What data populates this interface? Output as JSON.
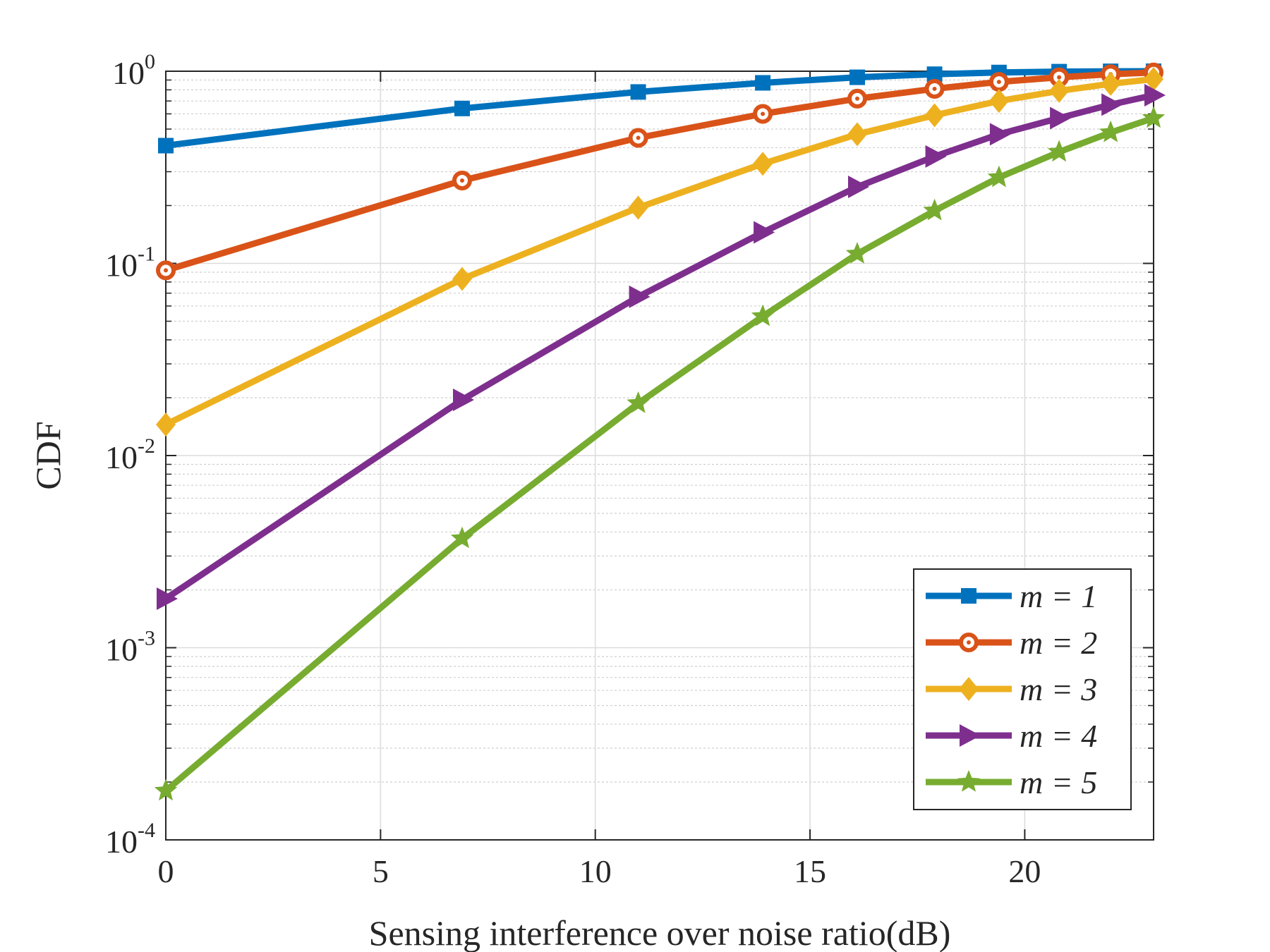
{
  "chart_data": {
    "type": "line",
    "title": "",
    "xlabel": "Sensing interference over noise ratio(dB)",
    "ylabel": "CDF",
    "xlim": [
      0,
      23
    ],
    "ylim": [
      0.0001,
      1
    ],
    "yscale": "log",
    "grid": true,
    "legend_position": "bottom-right",
    "x_ticks": [
      "0",
      "5",
      "10",
      "15",
      "20"
    ],
    "y_ticks": [
      {
        "base": "10",
        "exp": "-4"
      },
      {
        "base": "10",
        "exp": "-3"
      },
      {
        "base": "10",
        "exp": "-2"
      },
      {
        "base": "10",
        "exp": "-1"
      },
      {
        "base": "10",
        "exp": "0"
      }
    ],
    "x": [
      0,
      6.9,
      11,
      13.9,
      16.1,
      17.9,
      19.4,
      20.8,
      22,
      23
    ],
    "series": [
      {
        "name": "m = 1",
        "marker": "square",
        "color": "#0072BD",
        "values": [
          0.41,
          0.64,
          0.78,
          0.87,
          0.93,
          0.965,
          0.985,
          0.995,
          0.999,
          1.0
        ]
      },
      {
        "name": "m = 2",
        "marker": "circle",
        "color": "#D95319",
        "values": [
          0.092,
          0.27,
          0.45,
          0.6,
          0.72,
          0.81,
          0.88,
          0.93,
          0.965,
          0.985
        ]
      },
      {
        "name": "m = 3",
        "marker": "diamond",
        "color": "#EDB120",
        "values": [
          0.0145,
          0.083,
          0.195,
          0.33,
          0.47,
          0.59,
          0.7,
          0.79,
          0.86,
          0.91
        ]
      },
      {
        "name": "m = 4",
        "marker": "triangle-right",
        "color": "#7E2F8E",
        "values": [
          0.0018,
          0.0195,
          0.067,
          0.145,
          0.25,
          0.36,
          0.47,
          0.57,
          0.67,
          0.75
        ]
      },
      {
        "name": "m = 5",
        "marker": "star",
        "color": "#77AC30",
        "values": [
          0.00018,
          0.0037,
          0.0187,
          0.053,
          0.112,
          0.188,
          0.28,
          0.38,
          0.48,
          0.57
        ]
      }
    ]
  }
}
